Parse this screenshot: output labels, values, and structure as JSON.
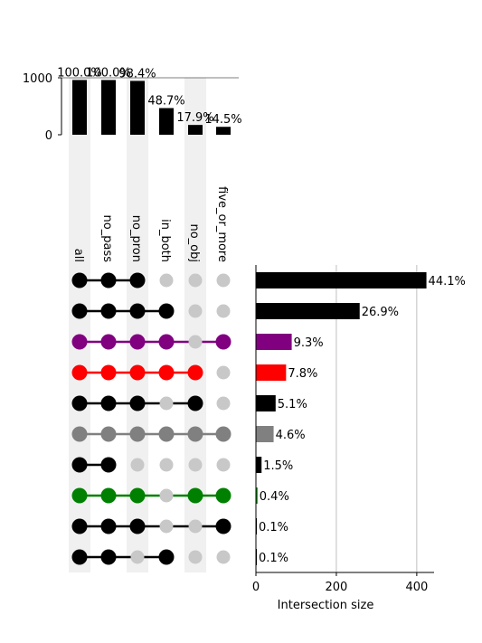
{
  "chart_data": [
    {
      "type": "bar",
      "role": "set-sizes",
      "categories": [
        "all",
        "no_pass",
        "no_pron",
        "in_both",
        "no_obj",
        "five_or_more"
      ],
      "values": [
        961,
        961,
        945,
        468,
        172,
        139
      ],
      "labels": [
        "100.0%",
        "100.0%",
        "98.4%",
        "48.7%",
        "17.9%",
        "14.5%"
      ],
      "yticks": [
        "0",
        "1000"
      ],
      "ylim": [
        0,
        1000
      ]
    },
    {
      "type": "bar",
      "role": "intersections",
      "orientation": "horizontal",
      "xlabel": "Intersection size",
      "xticks": [
        "0",
        "200",
        "400"
      ],
      "xlim": [
        0,
        443
      ],
      "grid": true,
      "rows": [
        {
          "members": [
            1,
            1,
            1,
            0,
            0,
            0
          ],
          "value": 424,
          "label": "44.1%",
          "color": "#000000"
        },
        {
          "members": [
            1,
            1,
            1,
            1,
            0,
            0
          ],
          "value": 258,
          "label": "26.9%",
          "color": "#000000"
        },
        {
          "members": [
            1,
            1,
            1,
            1,
            0,
            1
          ],
          "value": 89,
          "label": "9.3%",
          "color": "#800080"
        },
        {
          "members": [
            1,
            1,
            1,
            1,
            1,
            0
          ],
          "value": 75,
          "label": "7.8%",
          "color": "#ff0000"
        },
        {
          "members": [
            1,
            1,
            1,
            0,
            1,
            0
          ],
          "value": 49,
          "label": "5.1%",
          "color": "#000000"
        },
        {
          "members": [
            1,
            1,
            1,
            1,
            1,
            1
          ],
          "value": 44,
          "label": "4.6%",
          "color": "#808080"
        },
        {
          "members": [
            1,
            1,
            0,
            0,
            0,
            0
          ],
          "value": 14,
          "label": "1.5%",
          "color": "#000000"
        },
        {
          "members": [
            1,
            1,
            1,
            0,
            1,
            1
          ],
          "value": 4,
          "label": "0.4%",
          "color": "#008000"
        },
        {
          "members": [
            1,
            1,
            1,
            0,
            0,
            1
          ],
          "value": 1,
          "label": "0.1%",
          "color": "#000000"
        },
        {
          "members": [
            1,
            1,
            0,
            1,
            0,
            0
          ],
          "value": 1,
          "label": "0.1%",
          "color": "#000000"
        }
      ]
    }
  ],
  "colors": {
    "inactive_dot": "#c8c8c8",
    "shading": "#f0f0f0",
    "grid": "#b0b0b0"
  }
}
